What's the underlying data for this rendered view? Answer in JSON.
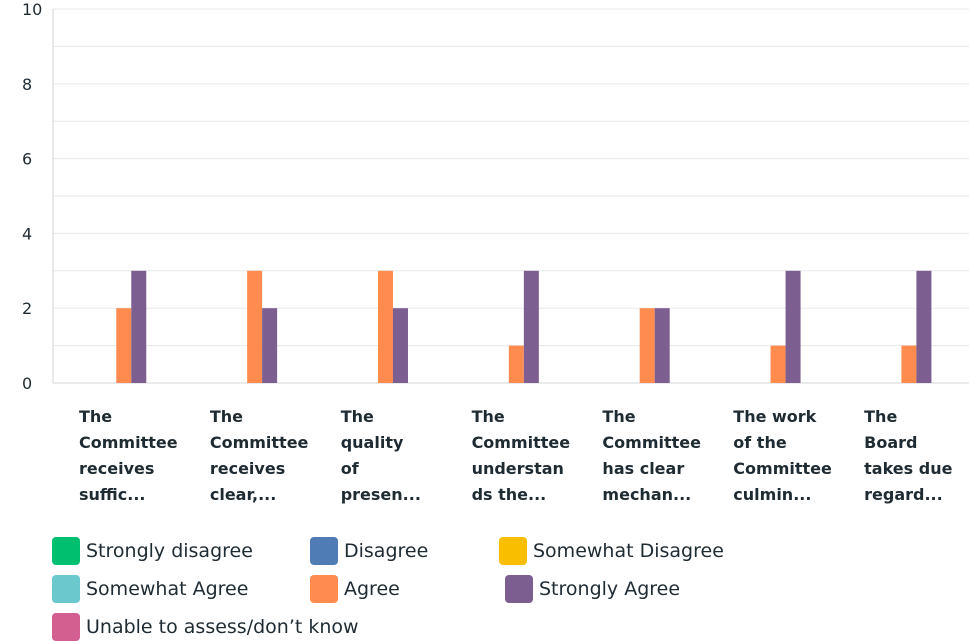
{
  "chart_data": {
    "type": "bar",
    "categories": [
      "The Committee receives suffic...",
      "The Committee receives clear,...",
      "The quality of presen...",
      "The Committee understands the...",
      "The Committee has clear mechan...",
      "The work of the Committee culmin...",
      "The Board takes due regard..."
    ],
    "category_lines": [
      [
        "The",
        "Committee",
        "receives",
        "suffic..."
      ],
      [
        "The",
        "Committee",
        "receives",
        "clear,..."
      ],
      [
        "The",
        "quality",
        "of",
        "presen..."
      ],
      [
        "The",
        "Committee",
        "understan",
        "ds the..."
      ],
      [
        "The",
        "Committee",
        "has clear",
        "mechan..."
      ],
      [
        "The work",
        "of the",
        "Committee",
        "culmin..."
      ],
      [
        "The",
        "Board",
        "takes due",
        "regard..."
      ]
    ],
    "series": [
      {
        "name": "Strongly disagree",
        "color": "#00bf6f",
        "values": [
          0,
          0,
          0,
          0,
          0,
          0,
          0
        ]
      },
      {
        "name": "Disagree",
        "color": "#507cb6",
        "values": [
          0,
          0,
          0,
          0,
          0,
          0,
          0
        ]
      },
      {
        "name": "Somewhat Disagree",
        "color": "#f9be00",
        "values": [
          0,
          0,
          0,
          0,
          0,
          0,
          0
        ]
      },
      {
        "name": "Somewhat Agree",
        "color": "#6bc8cd",
        "values": [
          0,
          0,
          0,
          0,
          0,
          0,
          0
        ]
      },
      {
        "name": "Agree",
        "color": "#ff8b4f",
        "values": [
          2,
          3,
          3,
          1,
          2,
          1,
          1
        ]
      },
      {
        "name": "Strongly Agree",
        "color": "#7d5e90",
        "values": [
          3,
          2,
          2,
          3,
          2,
          3,
          3
        ]
      },
      {
        "name": "Unable to assess/don’t know",
        "color": "#d25f90",
        "values": [
          0,
          0,
          0,
          0,
          0,
          0,
          0
        ]
      }
    ],
    "yticks": [
      "0",
      "2",
      "4",
      "6",
      "8",
      "10"
    ],
    "ylim": [
      0,
      10
    ],
    "grid": true,
    "legend_position": "bottom"
  }
}
